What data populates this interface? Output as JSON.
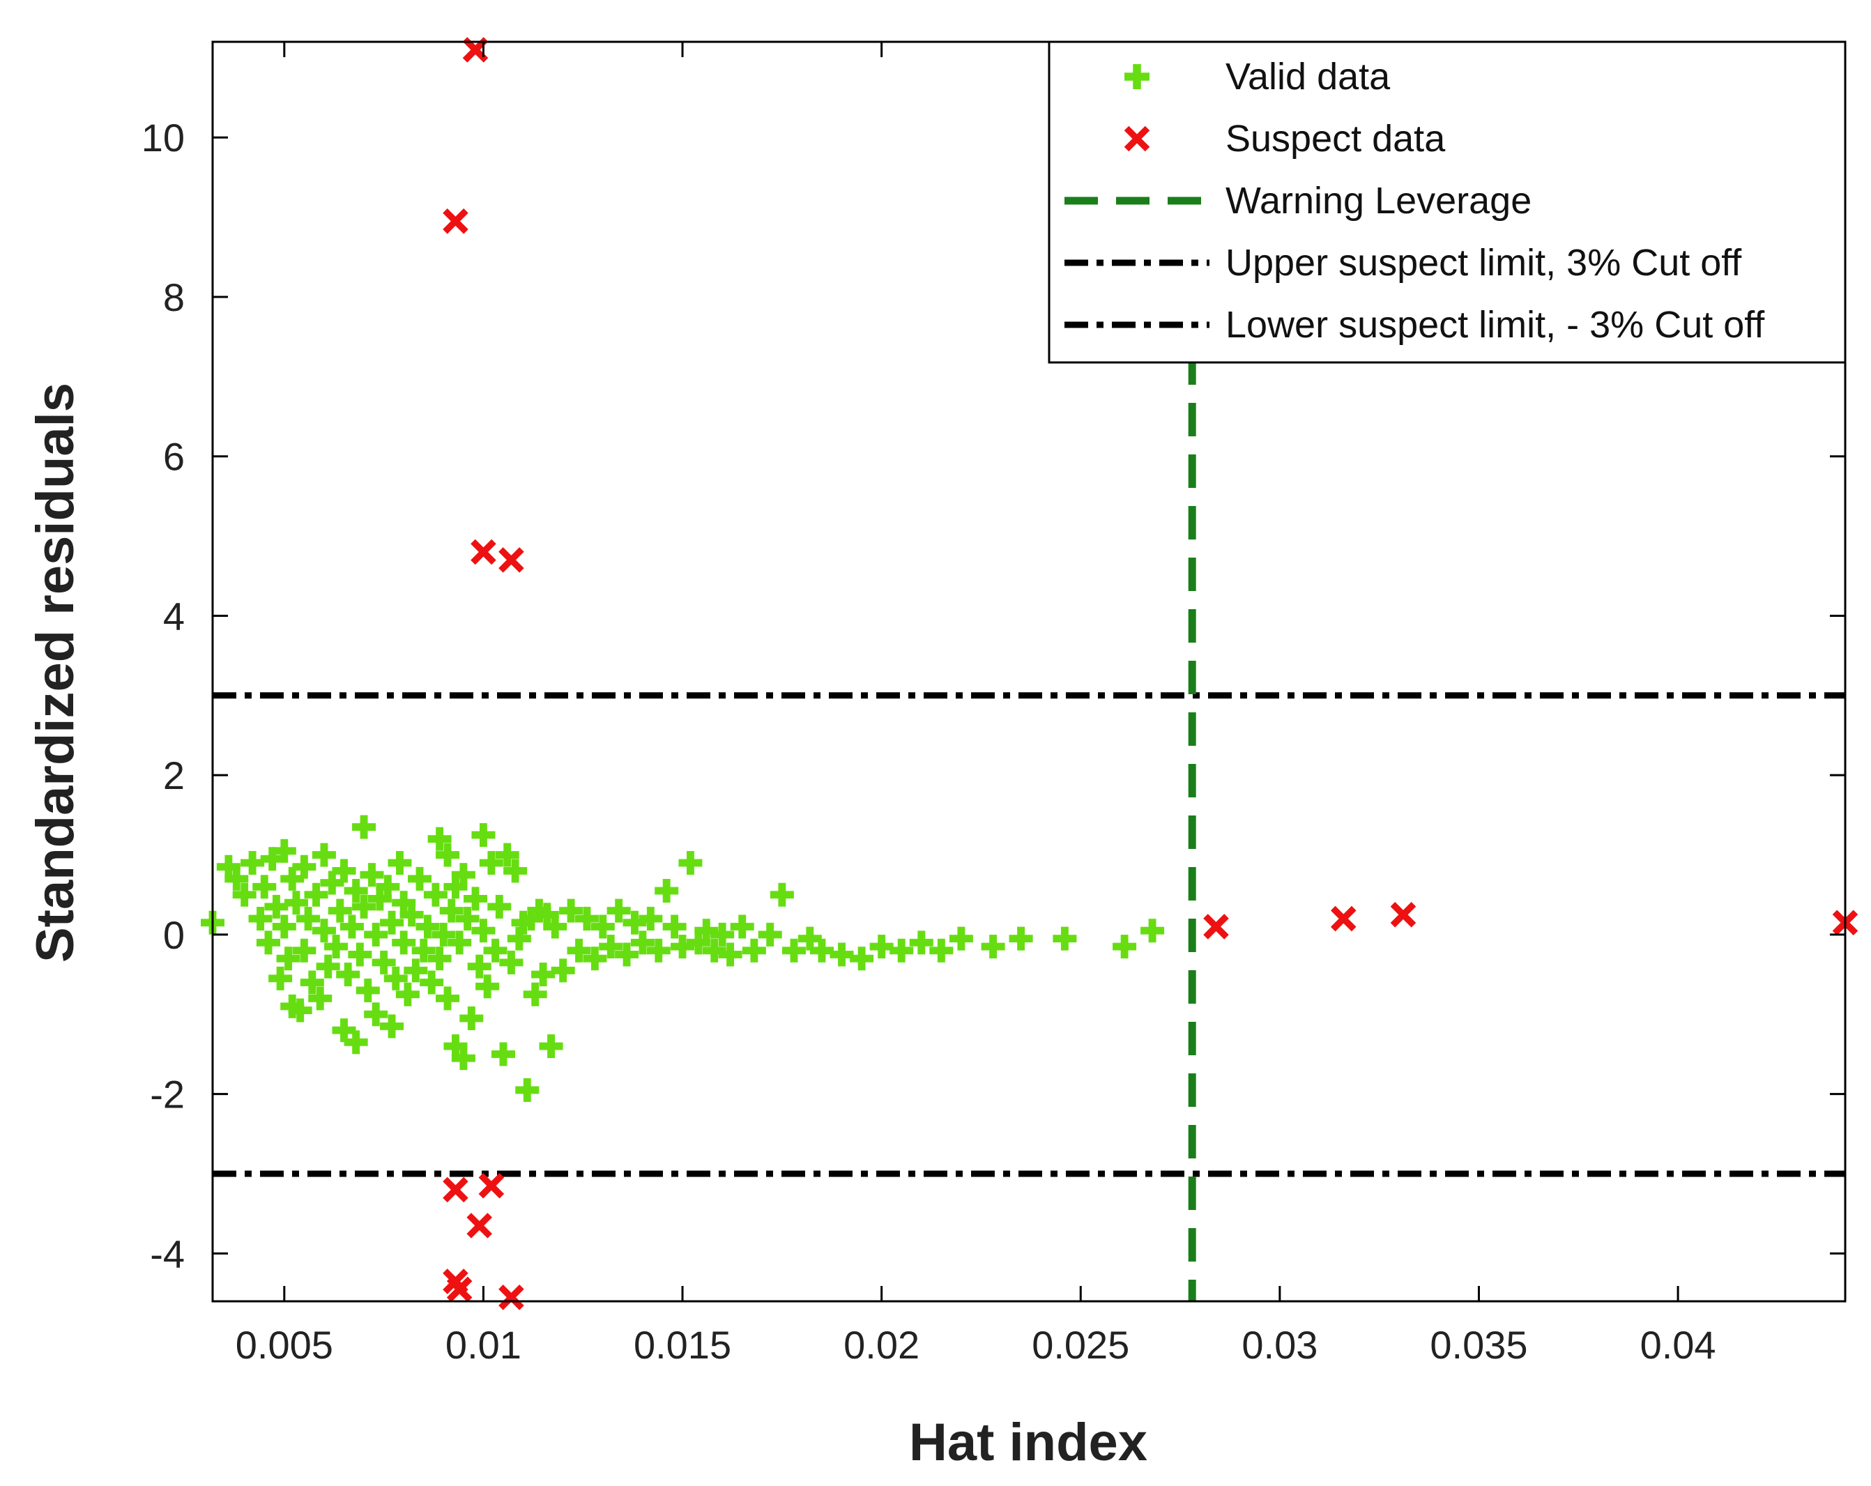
{
  "chart_data": {
    "type": "scatter",
    "xlabel": "Hat index",
    "ylabel": "Standardized residuals",
    "xlim": [
      0.0032,
      0.0442
    ],
    "ylim": [
      -4.6,
      11.2
    ],
    "xticks": [
      0.005,
      0.01,
      0.015,
      0.02,
      0.025,
      0.03,
      0.035,
      0.04
    ],
    "xtick_labels": [
      "0.005",
      "0.01",
      "0.015",
      "0.02",
      "0.025",
      "0.03",
      "0.035",
      "0.04"
    ],
    "yticks": [
      -4,
      -2,
      0,
      2,
      4,
      6,
      8,
      10
    ],
    "ytick_labels": [
      "-4",
      "-2",
      "0",
      "2",
      "4",
      "6",
      "8",
      "10"
    ],
    "grid": false,
    "legend_position": "top-right",
    "colors": {
      "valid": "#66dd11",
      "suspect": "#ee1111",
      "warning": "#1a7f1a",
      "limit": "#000000"
    },
    "legend": [
      {
        "label": "Valid data",
        "kind": "plus",
        "color": "#66dd11"
      },
      {
        "label": "Suspect data",
        "kind": "cross",
        "color": "#ee1111"
      },
      {
        "label": "Warning Leverage",
        "kind": "dash",
        "color": "#1a7f1a"
      },
      {
        "label": "Upper suspect limit, 3% Cut off",
        "kind": "dashdot",
        "color": "#000000"
      },
      {
        "label": "Lower suspect limit, - 3% Cut off",
        "kind": "dashdot",
        "color": "#000000"
      }
    ],
    "warning_leverage": 0.0278,
    "upper_limit": 3,
    "lower_limit": -3,
    "series": [
      {
        "name": "Valid data",
        "marker": "plus",
        "points": [
          [
            0.0032,
            0.15
          ],
          [
            0.0036,
            0.85
          ],
          [
            0.0038,
            0.7
          ],
          [
            0.004,
            0.5
          ],
          [
            0.0042,
            0.9
          ],
          [
            0.0044,
            0.2
          ],
          [
            0.0045,
            0.6
          ],
          [
            0.0046,
            -0.1
          ],
          [
            0.0047,
            0.95
          ],
          [
            0.0048,
            0.35
          ],
          [
            0.0049,
            -0.55
          ],
          [
            0.005,
            1.05
          ],
          [
            0.005,
            0.1
          ],
          [
            0.0051,
            -0.3
          ],
          [
            0.0052,
            0.7
          ],
          [
            0.0052,
            -0.9
          ],
          [
            0.0053,
            0.4
          ],
          [
            0.0054,
            -0.95
          ],
          [
            0.0055,
            0.85
          ],
          [
            0.0055,
            -0.2
          ],
          [
            0.0056,
            0.2
          ],
          [
            0.0057,
            -0.6
          ],
          [
            0.0058,
            0.5
          ],
          [
            0.0059,
            -0.8
          ],
          [
            0.006,
            1.0
          ],
          [
            0.006,
            0.05
          ],
          [
            0.0061,
            -0.4
          ],
          [
            0.0062,
            0.65
          ],
          [
            0.0063,
            -0.15
          ],
          [
            0.0064,
            0.3
          ],
          [
            0.0065,
            -1.2
          ],
          [
            0.0065,
            0.8
          ],
          [
            0.0066,
            -0.5
          ],
          [
            0.0067,
            0.1
          ],
          [
            0.0068,
            -1.35
          ],
          [
            0.0068,
            0.55
          ],
          [
            0.0069,
            -0.25
          ],
          [
            0.007,
            1.35
          ],
          [
            0.007,
            0.35
          ],
          [
            0.0071,
            -0.7
          ],
          [
            0.0072,
            0.75
          ],
          [
            0.0073,
            -1.0
          ],
          [
            0.0073,
            0.0
          ],
          [
            0.0074,
            0.45
          ],
          [
            0.0075,
            -0.35
          ],
          [
            0.0076,
            0.6
          ],
          [
            0.0077,
            -1.15
          ],
          [
            0.0077,
            0.15
          ],
          [
            0.0078,
            -0.55
          ],
          [
            0.0079,
            0.9
          ],
          [
            0.008,
            -0.1
          ],
          [
            0.008,
            0.4
          ],
          [
            0.0081,
            -0.75
          ],
          [
            0.0082,
            0.25
          ],
          [
            0.0083,
            -0.45
          ],
          [
            0.0084,
            0.7
          ],
          [
            0.0085,
            -0.2
          ],
          [
            0.0086,
            0.1
          ],
          [
            0.0087,
            -0.6
          ],
          [
            0.0088,
            0.5
          ],
          [
            0.0089,
            1.2
          ],
          [
            0.0089,
            -0.3
          ],
          [
            0.009,
            0.0
          ],
          [
            0.0091,
            1.0
          ],
          [
            0.0091,
            -0.8
          ],
          [
            0.0092,
            0.3
          ],
          [
            0.0093,
            -1.4
          ],
          [
            0.0093,
            0.6
          ],
          [
            0.0094,
            -0.1
          ],
          [
            0.0095,
            0.75
          ],
          [
            0.0095,
            -1.55
          ],
          [
            0.0096,
            0.2
          ],
          [
            0.0097,
            -1.05
          ],
          [
            0.0098,
            0.45
          ],
          [
            0.0099,
            -0.4
          ],
          [
            0.01,
            1.25
          ],
          [
            0.01,
            0.05
          ],
          [
            0.0101,
            -0.65
          ],
          [
            0.0102,
            0.9
          ],
          [
            0.0103,
            -0.2
          ],
          [
            0.0104,
            0.35
          ],
          [
            0.0105,
            -1.5
          ],
          [
            0.0106,
            1.0
          ],
          [
            0.0107,
            -0.35
          ],
          [
            0.0108,
            0.8
          ],
          [
            0.0109,
            -0.05
          ],
          [
            0.011,
            0.15
          ],
          [
            0.0111,
            -1.95
          ],
          [
            0.0112,
            0.2
          ],
          [
            0.0113,
            -0.75
          ],
          [
            0.0114,
            0.3
          ],
          [
            0.0115,
            -0.5
          ],
          [
            0.0116,
            0.25
          ],
          [
            0.0117,
            -1.4
          ],
          [
            0.0118,
            0.1
          ],
          [
            0.012,
            -0.45
          ],
          [
            0.0122,
            0.3
          ],
          [
            0.0124,
            -0.2
          ],
          [
            0.0126,
            0.2
          ],
          [
            0.0128,
            -0.3
          ],
          [
            0.013,
            0.1
          ],
          [
            0.0132,
            -0.15
          ],
          [
            0.0134,
            0.3
          ],
          [
            0.0136,
            -0.25
          ],
          [
            0.0138,
            0.15
          ],
          [
            0.014,
            -0.1
          ],
          [
            0.0142,
            0.2
          ],
          [
            0.0144,
            -0.2
          ],
          [
            0.0146,
            0.55
          ],
          [
            0.0148,
            0.1
          ],
          [
            0.015,
            -0.15
          ],
          [
            0.0152,
            0.9
          ],
          [
            0.0154,
            -0.1
          ],
          [
            0.0156,
            0.05
          ],
          [
            0.0158,
            -0.2
          ],
          [
            0.016,
            0.0
          ],
          [
            0.0162,
            -0.25
          ],
          [
            0.0165,
            0.1
          ],
          [
            0.0168,
            -0.2
          ],
          [
            0.0172,
            0.0
          ],
          [
            0.0175,
            0.5
          ],
          [
            0.0178,
            -0.2
          ],
          [
            0.0182,
            -0.05
          ],
          [
            0.0185,
            -0.2
          ],
          [
            0.019,
            -0.25
          ],
          [
            0.0195,
            -0.3
          ],
          [
            0.02,
            -0.15
          ],
          [
            0.0205,
            -0.2
          ],
          [
            0.021,
            -0.1
          ],
          [
            0.0215,
            -0.2
          ],
          [
            0.022,
            -0.05
          ],
          [
            0.0228,
            -0.15
          ],
          [
            0.0235,
            -0.05
          ],
          [
            0.0246,
            -0.05
          ],
          [
            0.0261,
            -0.15
          ],
          [
            0.0268,
            0.05
          ]
        ]
      },
      {
        "name": "Suspect data",
        "marker": "cross",
        "points": [
          [
            0.0098,
            11.1
          ],
          [
            0.0093,
            8.95
          ],
          [
            0.01,
            4.8
          ],
          [
            0.0107,
            4.7
          ],
          [
            0.0093,
            -3.2
          ],
          [
            0.0102,
            -3.15
          ],
          [
            0.0099,
            -3.65
          ],
          [
            0.0093,
            -4.35
          ],
          [
            0.0094,
            -4.45
          ],
          [
            0.0107,
            -4.55
          ],
          [
            0.0284,
            0.1
          ],
          [
            0.0316,
            0.2
          ],
          [
            0.0331,
            0.25
          ],
          [
            0.0442,
            0.15
          ]
        ]
      }
    ]
  }
}
